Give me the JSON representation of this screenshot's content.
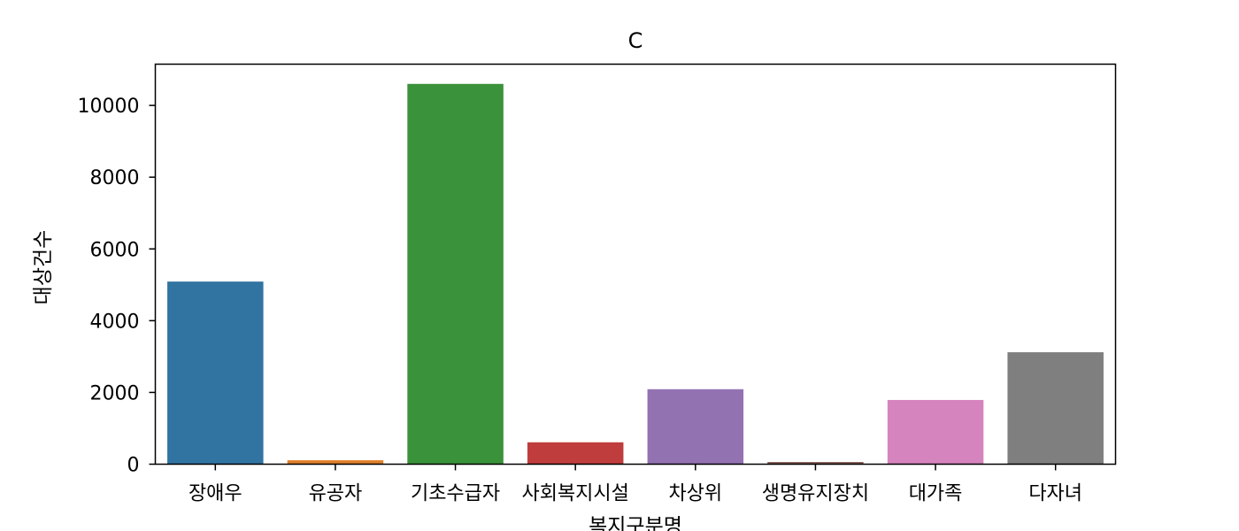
{
  "chart_data": {
    "type": "bar",
    "title": "C",
    "xlabel": "복지구분명",
    "ylabel": "대상건수",
    "categories": [
      "장애우",
      "유공자",
      "기초수급자",
      "사회복지시설",
      "차상위",
      "생명유지장치",
      "대가족",
      "다자녀"
    ],
    "values": [
      5090,
      110,
      10600,
      610,
      2090,
      60,
      1790,
      3120
    ],
    "colors": [
      "#3274a1",
      "#e1812c",
      "#3a923a",
      "#c03d3e",
      "#9372b2",
      "#845b53",
      "#d684bd",
      "#7f7f7f"
    ],
    "ylim": [
      0,
      11150
    ],
    "yticks": [
      0,
      2000,
      4000,
      6000,
      8000,
      10000
    ],
    "grid": false
  }
}
